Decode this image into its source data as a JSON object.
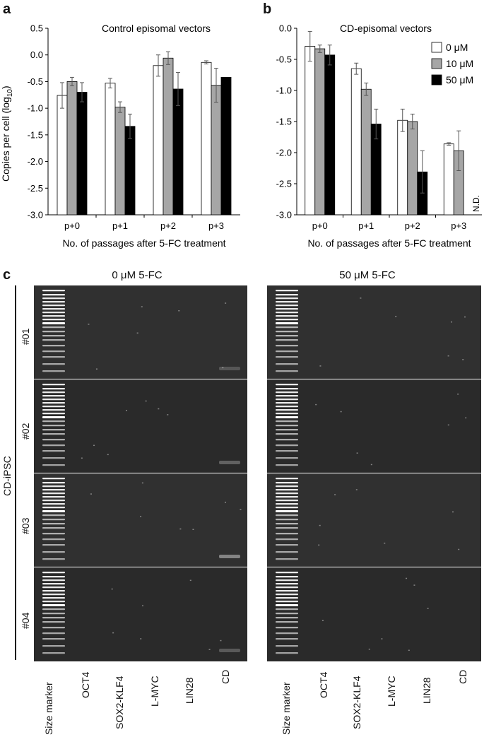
{
  "panels": {
    "a": {
      "letter": "a",
      "chart_data": {
        "type": "bar",
        "title": "Control episomal vectors",
        "xlabel": "No. of passages after 5-FC treatment",
        "ylabel_main": "Copies per cell (log",
        "ylabel_sub": "10",
        "ylabel_end": ")",
        "ylim": [
          -3.0,
          0.5
        ],
        "yticks": [
          "0.5",
          "0.0",
          "-0.5",
          "-1.0",
          "-1.5",
          "-2.0",
          "-2.5",
          "-3.0"
        ],
        "ytick_values": [
          0.5,
          0.0,
          -0.5,
          -1.0,
          -1.5,
          -2.0,
          -2.5,
          -3.0
        ],
        "categories": [
          "p+0",
          "p+1",
          "p+2",
          "p+3"
        ],
        "series": [
          {
            "name": "0 μM",
            "values": [
              -0.76,
              -0.53,
              -0.2,
              -0.14
            ],
            "err": [
              0.24,
              0.09,
              0.2,
              0.03
            ]
          },
          {
            "name": "10 μM",
            "values": [
              -0.5,
              -0.98,
              -0.06,
              -0.57
            ],
            "err": [
              0.08,
              0.1,
              0.12,
              0.32
            ]
          },
          {
            "name": "50 μM",
            "values": [
              -0.7,
              -1.34,
              -0.64,
              -0.42
            ],
            "err": [
              0.18,
              0.23,
              0.31,
              0.0
            ]
          }
        ],
        "colors": [
          "#ffffff",
          "#a6a6a6",
          "#000000"
        ]
      }
    },
    "b": {
      "letter": "b",
      "chart_data": {
        "type": "bar",
        "title": "CD-episomal vectors",
        "xlabel": "No. of passages after 5-FC treatment",
        "ylim": [
          -3.0,
          0.0
        ],
        "yticks": [
          "0.0",
          "-0.5",
          "-1.0",
          "-1.5",
          "-2.0",
          "-2.5",
          "-3.0"
        ],
        "ytick_values": [
          0.0,
          -0.5,
          -1.0,
          -1.5,
          -2.0,
          -2.5,
          -3.0
        ],
        "categories": [
          "p+0",
          "p+1",
          "p+2",
          "p+3"
        ],
        "series": [
          {
            "name": "0 μM",
            "values": [
              -0.29,
              -0.65,
              -1.48,
              -1.86
            ],
            "err": [
              0.24,
              0.09,
              0.18,
              0.02
            ]
          },
          {
            "name": "10 μM",
            "values": [
              -0.33,
              -0.98,
              -1.5,
              -1.97
            ],
            "err": [
              0.06,
              0.1,
              0.12,
              0.32
            ]
          },
          {
            "name": "50 μM",
            "values": [
              -0.43,
              -1.54,
              -2.31,
              null
            ],
            "err": [
              0.16,
              0.24,
              0.34,
              null
            ]
          }
        ],
        "annotation": "N.D.",
        "legend": [
          "0 μM",
          "10 μM",
          "50 μM"
        ],
        "legend_position": "top-right",
        "colors": [
          "#ffffff",
          "#a6a6a6",
          "#000000"
        ]
      }
    },
    "c": {
      "letter": "c",
      "titles": [
        "0 μM 5-FC",
        "50 μM 5-FC"
      ],
      "group_label": "CD-iPSC",
      "rows": [
        "#01",
        "#02",
        "#03",
        "#04"
      ],
      "lanes": [
        "Size marker",
        "OCT4",
        "SOX2-KLF4",
        "L-MYC",
        "LIN28",
        "CD"
      ]
    }
  }
}
